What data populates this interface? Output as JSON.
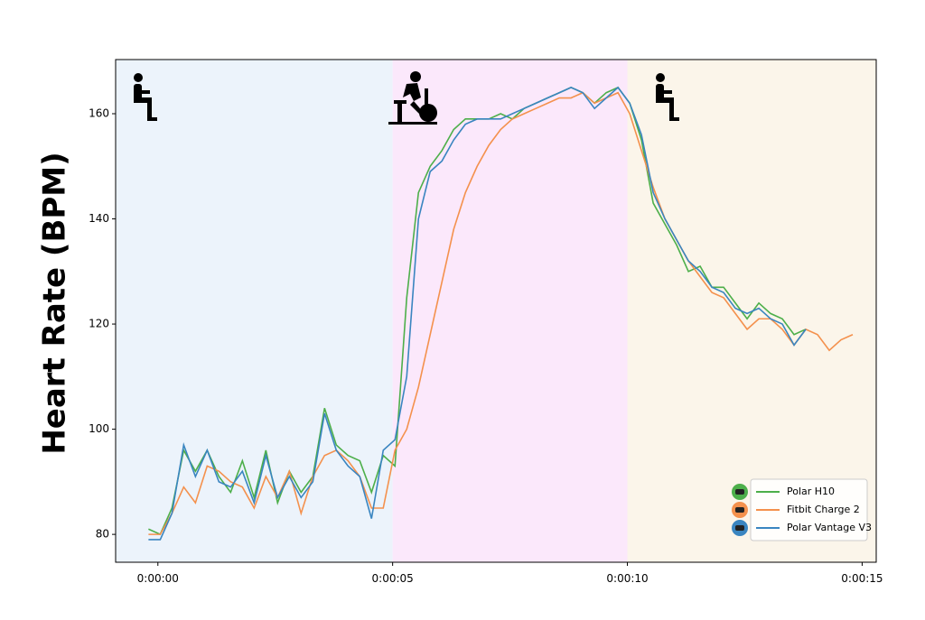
{
  "chart_data": {
    "type": "line",
    "ylabel": "Heart Rate (BPM)",
    "x": [
      -0.2,
      0.05,
      0.3,
      0.55,
      0.8,
      1.05,
      1.3,
      1.55,
      1.8,
      2.05,
      2.3,
      2.55,
      2.8,
      3.05,
      3.3,
      3.55,
      3.8,
      4.05,
      4.3,
      4.55,
      4.8,
      5.05,
      5.3,
      5.55,
      5.8,
      6.05,
      6.3,
      6.55,
      6.8,
      7.05,
      7.3,
      7.55,
      7.8,
      8.05,
      8.3,
      8.55,
      8.8,
      9.05,
      9.3,
      9.55,
      9.8,
      10.05,
      10.3,
      10.55,
      10.8,
      11.05,
      11.3,
      11.55,
      11.8,
      12.05,
      12.3,
      12.55,
      12.8,
      13.05,
      13.3,
      13.55,
      13.8,
      14.05,
      14.3,
      14.55,
      14.8
    ],
    "series": [
      {
        "name": "Polar H10",
        "color": "#4daf4a",
        "values": [
          81,
          80,
          85,
          96,
          92,
          96,
          91,
          88,
          94,
          87,
          96,
          86,
          92,
          88,
          91,
          104,
          97,
          95,
          94,
          88,
          95,
          93,
          125,
          145,
          150,
          153,
          157,
          159,
          159,
          159,
          160,
          159,
          161,
          162,
          163,
          164,
          165,
          164,
          162,
          164,
          165,
          162,
          155,
          143,
          139,
          135,
          130,
          131,
          127,
          127,
          124,
          121,
          124,
          122,
          121,
          118,
          119,
          null,
          null,
          null,
          null
        ]
      },
      {
        "name": "Fitbit Charge 2",
        "color": "#f4914d",
        "values": [
          80,
          80,
          84,
          89,
          86,
          93,
          92,
          90,
          89,
          85,
          91,
          87,
          92,
          84,
          91,
          95,
          96,
          94,
          91,
          85,
          85,
          96,
          100,
          108,
          118,
          128,
          138,
          145,
          150,
          154,
          157,
          159,
          160,
          161,
          162,
          163,
          163,
          164,
          162,
          163,
          164,
          160,
          153,
          146,
          140,
          136,
          132,
          129,
          126,
          125,
          122,
          119,
          121,
          121,
          119,
          116,
          119,
          118,
          115,
          117,
          118
        ]
      },
      {
        "name": "Polar Vantage V3",
        "color": "#3a85c0",
        "values": [
          79,
          79,
          84,
          97,
          91,
          96,
          90,
          89,
          92,
          86,
          95,
          87,
          91,
          87,
          90,
          103,
          96,
          93,
          91,
          83,
          96,
          98,
          110,
          140,
          149,
          151,
          155,
          158,
          159,
          159,
          159,
          160,
          161,
          162,
          163,
          164,
          165,
          164,
          161,
          163,
          165,
          162,
          156,
          145,
          140,
          136,
          132,
          130,
          127,
          126,
          123,
          122,
          123,
          121,
          120,
          116,
          119,
          null,
          null,
          null,
          null
        ]
      }
    ],
    "xlim": [
      -0.9,
      15.3
    ],
    "ylim": [
      74.7,
      170.3
    ],
    "xticks": [
      {
        "value": 0,
        "label": "0:00:00"
      },
      {
        "value": 5,
        "label": "0:00:05"
      },
      {
        "value": 10,
        "label": "0:00:10"
      },
      {
        "value": 15,
        "label": "0:00:15"
      }
    ],
    "yticks": [
      80,
      100,
      120,
      140,
      160
    ],
    "regions": [
      {
        "start": -0.9,
        "end": 5,
        "color": "#ecf3fb"
      },
      {
        "start": 5,
        "end": 10,
        "color": "#fbe8fb"
      },
      {
        "start": 10,
        "end": 15.3,
        "color": "#fbf5ea"
      }
    ],
    "legend": "lower right"
  }
}
